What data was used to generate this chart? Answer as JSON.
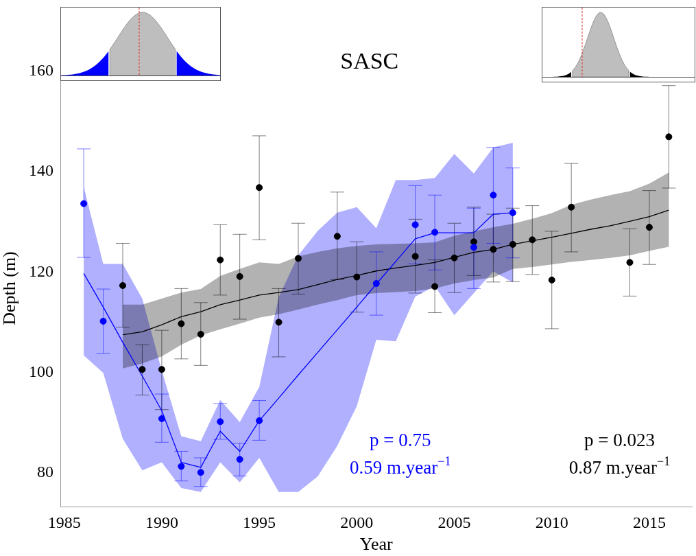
{
  "chart_data": {
    "type": "scatter",
    "title": "SASC",
    "xlabel": "Year",
    "ylabel": "Depth (m)",
    "xlim": [
      1984.8,
      2017.2
    ],
    "ylim": [
      73.3,
      160.2
    ],
    "xticks": [
      1985,
      1990,
      1995,
      2000,
      2005,
      2010,
      2015
    ],
    "yticks": [
      80,
      100,
      120,
      140,
      160
    ],
    "grid": false,
    "legend": false,
    "annotations": [
      "p = 0.75",
      "0.59 m.year$^{−1}$",
      "p = 0.023",
      "0.87 m.year$^{−1}$"
    ],
    "series": [
      {
        "type": "line",
        "color": "#0000ff",
        "x": [
          1986,
          1987,
          1988,
          1989,
          1990,
          1991,
          1992,
          1993,
          1994,
          1995,
          1996,
          1997,
          1998,
          1999,
          2000,
          2001,
          2002,
          2003,
          2004,
          2005,
          2006,
          2007,
          2008
        ],
        "values": [
          119.7,
          113,
          106,
          99.3,
          92.4,
          82.1,
          81.1,
          88.3,
          84.3,
          90.4,
          94.9,
          99.5,
          104,
          108.5,
          113,
          117.6,
          122.1,
          126.6,
          127.8,
          127.8,
          127.8,
          131.5,
          131.8
        ],
        "lower": [
          103.4,
          99.9,
          86.8,
          80.5,
          82.1,
          77,
          76.2,
          82.1,
          78.1,
          83,
          76.2,
          76.2,
          79.3,
          85.4,
          93.3,
          106.5,
          106.2,
          115.1,
          117.2,
          111.4,
          115.8,
          120.1,
          117.9
        ],
        "upper": [
          136.9,
          121.6,
          121.6,
          114.7,
          100.4,
          87.3,
          86.3,
          94.5,
          90.1,
          97.1,
          115,
          123.3,
          128.2,
          131.8,
          132.9,
          128.7,
          138.3,
          138.3,
          138.7,
          143.5,
          139.6,
          144.8,
          145.7
        ]
      },
      {
        "type": "line",
        "color": "#000000",
        "x": [
          1988,
          1989,
          1990,
          1991,
          1992,
          1993,
          1994,
          1995,
          1996,
          1997,
          1998,
          1999,
          2000,
          2001,
          2002,
          2003,
          2004,
          2005,
          2006,
          2007,
          2008,
          2009,
          2010,
          2011,
          2012,
          2013,
          2014,
          2015,
          2016
        ],
        "values": [
          107.5,
          108.1,
          109.5,
          111.1,
          112.1,
          113.5,
          114.4,
          115.4,
          115.9,
          116.5,
          117.5,
          118.5,
          119.3,
          120.2,
          120.8,
          121.3,
          121.9,
          122.9,
          123.9,
          124.5,
          125.5,
          126.2,
          126.9,
          127.7,
          128.5,
          129.2,
          130.1,
          131,
          132.3
        ],
        "lower": [
          100.8,
          101.8,
          103.2,
          105.5,
          107.4,
          108.6,
          109.7,
          110.9,
          111.6,
          112.5,
          113.5,
          114.4,
          115.4,
          115.8,
          116,
          116.2,
          116.7,
          117.7,
          118.4,
          118.9,
          120.6,
          121,
          121.5,
          122,
          122.4,
          122.8,
          123.3,
          124.2,
          125
        ],
        "upper": [
          113.5,
          113.5,
          114.7,
          115.9,
          116.6,
          119.2,
          120.6,
          121.9,
          121.6,
          123.1,
          124,
          124.7,
          125.2,
          125.5,
          125.6,
          125.7,
          125.9,
          127.2,
          128.1,
          128.9,
          129.6,
          130.6,
          131.7,
          133.4,
          134.4,
          135.3,
          136.1,
          137.6,
          139.8
        ]
      },
      {
        "type": "scatter",
        "color": "#0000ff",
        "marker": "circle",
        "x": [
          1986,
          1987,
          1990,
          1991,
          1992,
          1993,
          1994,
          1995,
          2001,
          2003,
          2004,
          2006,
          2007,
          2008
        ],
        "values": [
          133.6,
          110.2,
          90.8,
          81.3,
          80.1,
          90.2,
          82.7,
          90.4,
          117.7,
          129.4,
          127.9,
          124.9,
          135.3,
          131.8
        ],
        "errors": [
          [
            122.9,
            144.5
          ],
          [
            103.8,
            116.6
          ],
          [
            86.1,
            95.7
          ],
          [
            78.4,
            84.3
          ],
          [
            77.3,
            83
          ],
          [
            86.7,
            93.8
          ],
          [
            79.4,
            85.9
          ],
          [
            86.5,
            94.4
          ],
          [
            111.4,
            124
          ],
          [
            121.6,
            137.2
          ],
          [
            120.4,
            135.3
          ],
          [
            116.7,
            132.7
          ],
          [
            125.7,
            144.8
          ],
          [
            122.8,
            140.7
          ]
        ]
      },
      {
        "type": "scatter",
        "color": "#000000",
        "marker": "circle",
        "x": [
          1988,
          1989,
          1990,
          1991,
          1992,
          1993,
          1994,
          1995,
          1996,
          1997,
          1999,
          2000,
          2003,
          2004,
          2005,
          2006,
          2007,
          2008,
          2009,
          2010,
          2011,
          2014,
          2015,
          2016
        ],
        "values": [
          117.3,
          100.6,
          100.6,
          109.7,
          107.6,
          122.4,
          119.1,
          136.8,
          110,
          122.7,
          127.1,
          119,
          123.1,
          117.1,
          122.8,
          126,
          124.5,
          125.5,
          126.4,
          118.4,
          132.9,
          121.9,
          128.9,
          146.9
        ],
        "errors": [
          [
            109,
            125.7
          ],
          [
            95.5,
            105.5
          ],
          [
            92.6,
            108.4
          ],
          [
            102.7,
            116.7
          ],
          [
            101.4,
            113.9
          ],
          [
            115.4,
            129.4
          ],
          [
            110.6,
            127.5
          ],
          [
            126.4,
            147.1
          ],
          [
            103.1,
            116.7
          ],
          [
            115.6,
            129.7
          ],
          [
            118.5,
            135.9
          ],
          [
            112,
            126
          ],
          [
            115.8,
            130.5
          ],
          [
            111.9,
            122.4
          ],
          [
            115.9,
            129.7
          ],
          [
            119.3,
            132.9
          ],
          [
            118,
            131.5
          ],
          [
            118.1,
            132.7
          ],
          [
            119.5,
            133.2
          ],
          [
            108.7,
            128.1
          ],
          [
            124,
            141.6
          ],
          [
            115.2,
            128.6
          ],
          [
            121.5,
            136.2
          ],
          [
            136.7,
            157.1
          ]
        ]
      }
    ]
  }
}
